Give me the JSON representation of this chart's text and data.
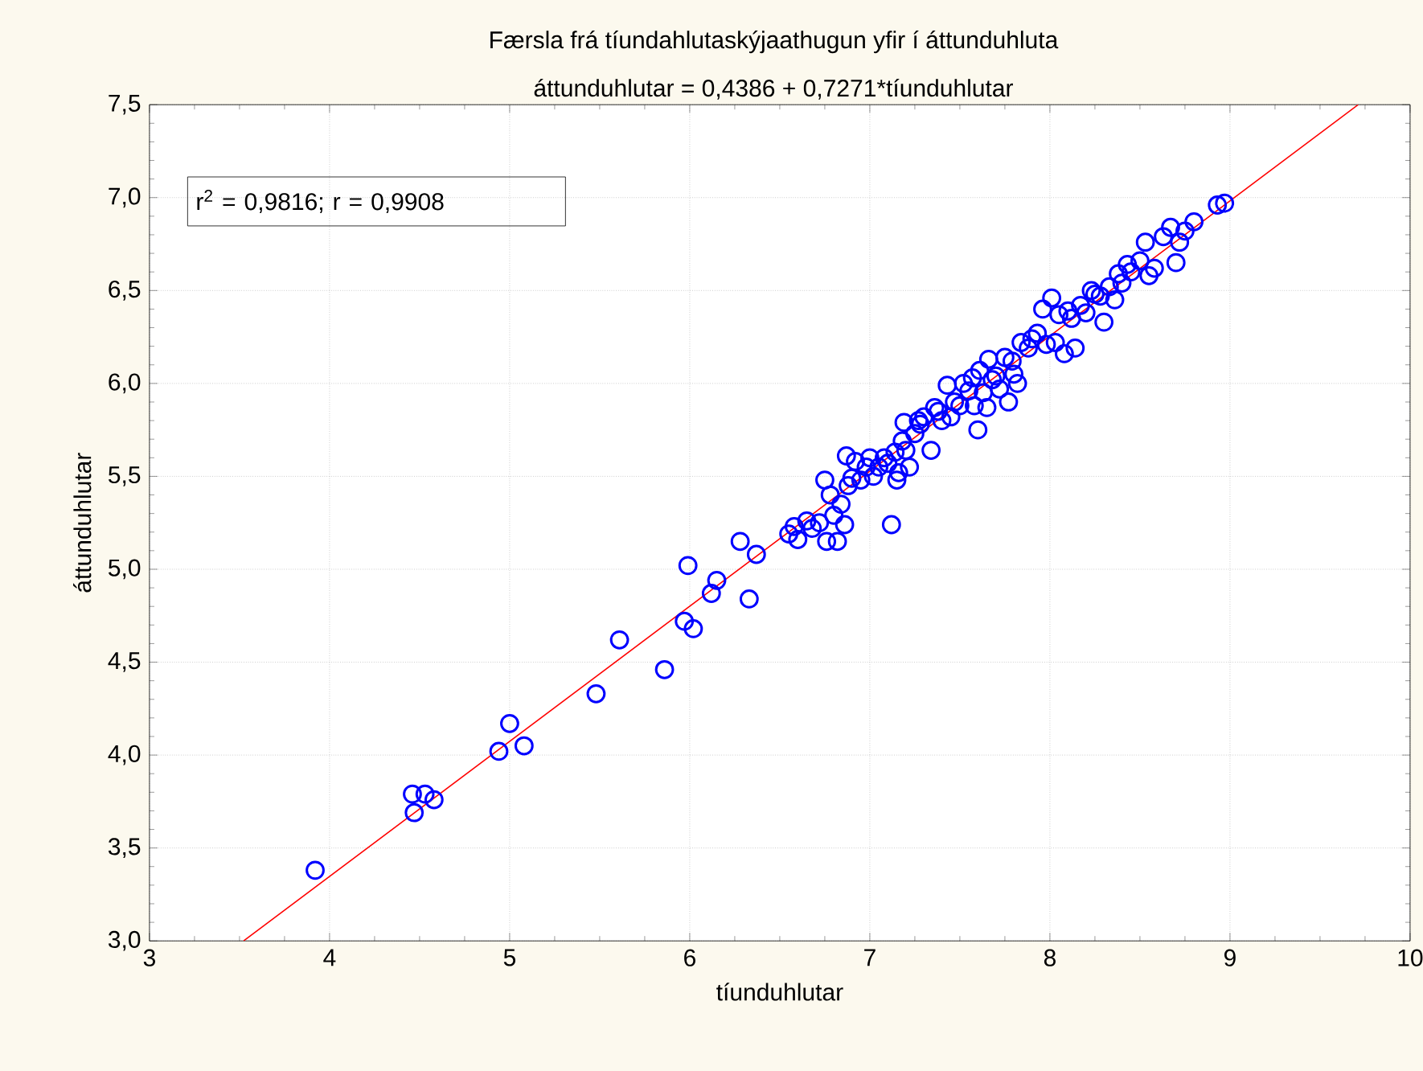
{
  "chart_data": {
    "type": "scatter",
    "title": "Færsla frá tíundahlutaskýjaathugun yfir í áttunduhluta",
    "subtitle": "áttunduhlutar = 0,4386 + 0,7271*tíunduhlutar",
    "xlabel": "tíunduhlutar",
    "ylabel": "áttunduhlutar",
    "annotations": [
      "r$^{2}$ = 0,9816; r = 0,9908"
    ],
    "xlim": [
      3,
      10
    ],
    "ylim": [
      3,
      7.5
    ],
    "xticks": [
      3,
      4,
      5,
      6,
      7,
      8,
      9,
      10
    ],
    "yticks": [
      {
        "value": 3,
        "label": "3,0"
      },
      {
        "value": 3.5,
        "label": "3,5"
      },
      {
        "value": 4,
        "label": "4,0"
      },
      {
        "value": 4.5,
        "label": "4,5"
      },
      {
        "value": 5,
        "label": "5,0"
      },
      {
        "value": 5.5,
        "label": "5,5"
      },
      {
        "value": 6,
        "label": "6,0"
      },
      {
        "value": 6.5,
        "label": "6,5"
      },
      {
        "value": 7,
        "label": "7,0"
      },
      {
        "value": 7.5,
        "label": "7,5"
      }
    ],
    "grid": true,
    "marker": "circle",
    "series": [
      {
        "color": "#0000ff",
        "x": [
          3.92,
          4.46,
          4.47,
          4.53,
          4.58,
          4.94,
          5.0,
          5.08,
          5.48,
          5.61,
          5.86,
          5.97,
          5.99,
          6.02,
          6.12,
          6.15,
          6.28,
          6.33,
          6.37,
          6.55,
          6.58,
          6.6,
          6.65,
          6.68,
          6.72,
          6.75,
          6.76,
          6.78,
          6.8,
          6.82,
          6.84,
          6.86,
          6.87,
          6.88,
          6.9,
          6.92,
          6.95,
          6.98,
          7.0,
          7.02,
          7.05,
          7.08,
          7.1,
          7.12,
          7.14,
          7.15,
          7.16,
          7.18,
          7.19,
          7.2,
          7.22,
          7.25,
          7.27,
          7.28,
          7.3,
          7.34,
          7.36,
          7.38,
          7.4,
          7.43,
          7.45,
          7.47,
          7.5,
          7.52,
          7.55,
          7.57,
          7.58,
          7.6,
          7.61,
          7.63,
          7.65,
          7.66,
          7.68,
          7.7,
          7.72,
          7.75,
          7.77,
          7.79,
          7.8,
          7.82,
          7.84,
          7.88,
          7.9,
          7.93,
          7.96,
          7.98,
          8.01,
          8.03,
          8.05,
          8.08,
          8.1,
          8.12,
          8.14,
          8.17,
          8.2,
          8.23,
          8.25,
          8.28,
          8.3,
          8.33,
          8.36,
          8.38,
          8.4,
          8.43,
          8.45,
          8.5,
          8.53,
          8.55,
          8.58,
          8.63,
          8.67,
          8.7,
          8.72,
          8.75,
          8.8,
          8.93,
          8.97
        ],
        "values": [
          3.38,
          3.79,
          3.69,
          3.79,
          3.76,
          4.02,
          4.17,
          4.05,
          4.33,
          4.62,
          4.46,
          4.72,
          5.02,
          4.68,
          4.87,
          4.94,
          5.15,
          4.84,
          5.08,
          5.19,
          5.23,
          5.16,
          5.26,
          5.22,
          5.25,
          5.48,
          5.15,
          5.4,
          5.29,
          5.15,
          5.35,
          5.24,
          5.61,
          5.45,
          5.49,
          5.58,
          5.48,
          5.55,
          5.6,
          5.5,
          5.55,
          5.6,
          5.57,
          5.24,
          5.63,
          5.48,
          5.52,
          5.69,
          5.79,
          5.64,
          5.55,
          5.73,
          5.8,
          5.78,
          5.82,
          5.64,
          5.87,
          5.85,
          5.8,
          5.99,
          5.82,
          5.9,
          5.88,
          6.0,
          5.96,
          6.03,
          5.88,
          5.75,
          6.07,
          5.95,
          5.87,
          6.13,
          6.02,
          6.04,
          5.97,
          6.14,
          5.9,
          6.12,
          6.05,
          6.0,
          6.22,
          6.19,
          6.24,
          6.27,
          6.4,
          6.21,
          6.46,
          6.22,
          6.37,
          6.16,
          6.39,
          6.35,
          6.19,
          6.42,
          6.38,
          6.5,
          6.48,
          6.47,
          6.33,
          6.52,
          6.45,
          6.59,
          6.54,
          6.64,
          6.6,
          6.66,
          6.76,
          6.58,
          6.62,
          6.79,
          6.84,
          6.65,
          6.76,
          6.82,
          6.87,
          6.96,
          6.97
        ]
      },
      {
        "type": "line",
        "color": "#ff0000",
        "marker": "none",
        "x": [
          3.523,
          9.712
        ],
        "values": [
          3.0,
          7.5
        ]
      }
    ]
  }
}
